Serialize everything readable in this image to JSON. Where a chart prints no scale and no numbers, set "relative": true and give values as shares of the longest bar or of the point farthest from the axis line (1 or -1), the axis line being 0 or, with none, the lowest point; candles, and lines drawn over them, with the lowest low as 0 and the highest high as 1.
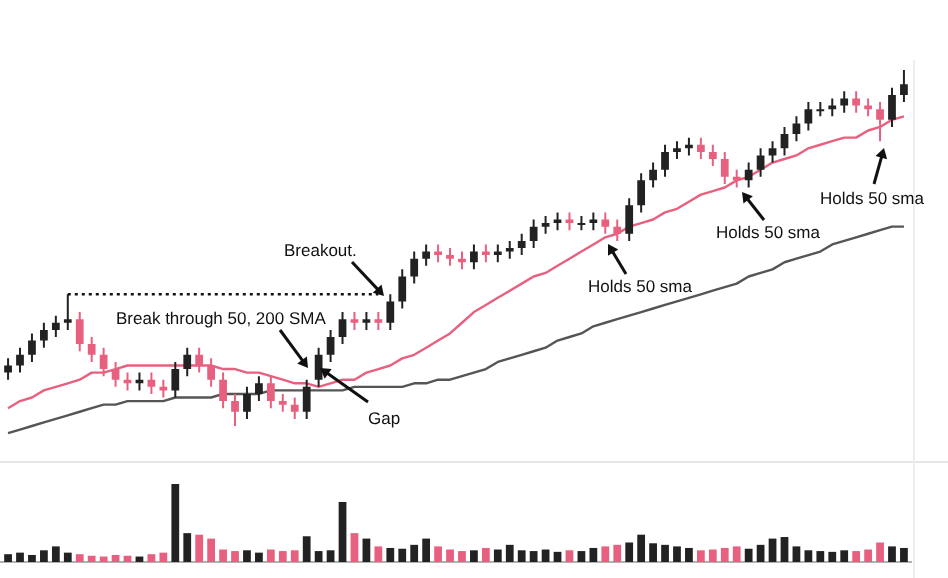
{
  "chart_data": [
    {
      "type": "candlestick",
      "relative": true,
      "categories": [
        null,
        null,
        null,
        null,
        null,
        null,
        null,
        null,
        null,
        null,
        null,
        null,
        null,
        null,
        null,
        null,
        null,
        null,
        null,
        null,
        null,
        null,
        null,
        null,
        null,
        null,
        null,
        null,
        null,
        null,
        null,
        null,
        null,
        null,
        null,
        null,
        null,
        null,
        null,
        null,
        null,
        null,
        null,
        null,
        null,
        null,
        null,
        null,
        null,
        null,
        null,
        null,
        null,
        null,
        null,
        null,
        null,
        null,
        null,
        null,
        null,
        null,
        null,
        null,
        null,
        null,
        null,
        null,
        null,
        null,
        null,
        null,
        null,
        null,
        null,
        null
      ],
      "ohlc": [
        [
          0.15,
          0.19,
          0.13,
          0.17
        ],
        [
          0.17,
          0.22,
          0.15,
          0.2
        ],
        [
          0.2,
          0.26,
          0.18,
          0.24
        ],
        [
          0.24,
          0.29,
          0.22,
          0.27
        ],
        [
          0.27,
          0.31,
          0.25,
          0.29
        ],
        [
          0.29,
          0.37,
          0.27,
          0.3
        ],
        [
          0.3,
          0.32,
          0.21,
          0.23
        ],
        [
          0.23,
          0.25,
          0.18,
          0.2
        ],
        [
          0.2,
          0.22,
          0.14,
          0.16
        ],
        [
          0.16,
          0.18,
          0.11,
          0.13
        ],
        [
          0.13,
          0.15,
          0.1,
          0.12
        ],
        [
          0.12,
          0.15,
          0.1,
          0.13
        ],
        [
          0.13,
          0.15,
          0.09,
          0.11
        ],
        [
          0.11,
          0.13,
          0.08,
          0.1
        ],
        [
          0.1,
          0.18,
          0.08,
          0.16
        ],
        [
          0.16,
          0.22,
          0.14,
          0.2
        ],
        [
          0.2,
          0.22,
          0.15,
          0.17
        ],
        [
          0.17,
          0.19,
          0.11,
          0.13
        ],
        [
          0.13,
          0.15,
          0.05,
          0.07
        ],
        [
          0.07,
          0.09,
          0,
          0.04
        ],
        [
          0.04,
          0.11,
          0.02,
          0.09
        ],
        [
          0.09,
          0.14,
          0.07,
          0.12
        ],
        [
          0.12,
          0.14,
          0.05,
          0.07
        ],
        [
          0.07,
          0.09,
          0.04,
          0.06
        ],
        [
          0.06,
          0.08,
          0.02,
          0.04
        ],
        [
          0.04,
          0.13,
          0.02,
          0.11
        ],
        [
          0.13,
          0.22,
          0.11,
          0.2
        ],
        [
          0.2,
          0.27,
          0.18,
          0.25
        ],
        [
          0.25,
          0.32,
          0.23,
          0.3
        ],
        [
          0.3,
          0.32,
          0.27,
          0.29
        ],
        [
          0.29,
          0.32,
          0.27,
          0.3
        ],
        [
          0.3,
          0.32,
          0.27,
          0.29
        ],
        [
          0.29,
          0.37,
          0.27,
          0.35
        ],
        [
          0.35,
          0.44,
          0.33,
          0.42
        ],
        [
          0.42,
          0.49,
          0.4,
          0.47
        ],
        [
          0.47,
          0.51,
          0.45,
          0.49
        ],
        [
          0.49,
          0.51,
          0.46,
          0.48
        ],
        [
          0.48,
          0.5,
          0.45,
          0.47
        ],
        [
          0.47,
          0.49,
          0.44,
          0.46
        ],
        [
          0.46,
          0.51,
          0.44,
          0.49
        ],
        [
          0.49,
          0.51,
          0.46,
          0.48
        ],
        [
          0.48,
          0.51,
          0.46,
          0.49
        ],
        [
          0.49,
          0.52,
          0.47,
          0.5
        ],
        [
          0.5,
          0.54,
          0.48,
          0.52
        ],
        [
          0.52,
          0.58,
          0.5,
          0.56
        ],
        [
          0.56,
          0.59,
          0.54,
          0.57
        ],
        [
          0.57,
          0.6,
          0.55,
          0.58
        ],
        [
          0.58,
          0.6,
          0.55,
          0.57
        ],
        [
          0.57,
          0.59,
          0.55,
          0.57
        ],
        [
          0.57,
          0.6,
          0.55,
          0.58
        ],
        [
          0.58,
          0.6,
          0.54,
          0.56
        ],
        [
          0.56,
          0.58,
          0.52,
          0.54
        ],
        [
          0.54,
          0.64,
          0.52,
          0.62
        ],
        [
          0.62,
          0.71,
          0.6,
          0.69
        ],
        [
          0.69,
          0.74,
          0.67,
          0.72
        ],
        [
          0.72,
          0.79,
          0.7,
          0.77
        ],
        [
          0.77,
          0.8,
          0.75,
          0.78
        ],
        [
          0.78,
          0.81,
          0.76,
          0.79
        ],
        [
          0.79,
          0.81,
          0.75,
          0.77
        ],
        [
          0.77,
          0.79,
          0.73,
          0.75
        ],
        [
          0.75,
          0.77,
          0.68,
          0.7
        ],
        [
          0.7,
          0.72,
          0.67,
          0.69
        ],
        [
          0.69,
          0.74,
          0.67,
          0.72
        ],
        [
          0.72,
          0.78,
          0.7,
          0.76
        ],
        [
          0.76,
          0.8,
          0.74,
          0.78
        ],
        [
          0.78,
          0.84,
          0.76,
          0.82
        ],
        [
          0.82,
          0.87,
          0.8,
          0.85
        ],
        [
          0.85,
          0.91,
          0.83,
          0.89
        ],
        [
          0.89,
          0.91,
          0.87,
          0.89
        ],
        [
          0.89,
          0.92,
          0.87,
          0.9
        ],
        [
          0.9,
          0.94,
          0.88,
          0.92
        ],
        [
          0.92,
          0.94,
          0.88,
          0.9
        ],
        [
          0.9,
          0.92,
          0.87,
          0.89
        ],
        [
          0.89,
          0.91,
          0.8,
          0.86
        ],
        [
          0.86,
          0.95,
          0.84,
          0.93
        ],
        [
          0.93,
          1,
          0.91,
          0.96
        ]
      ],
      "colors": [
        "#222222",
        "#222222",
        "#222222",
        "#222222",
        "#222222",
        "#222222",
        "#e8607f",
        "#e8607f",
        "#e8607f",
        "#e8607f",
        "#e8607f",
        "#222222",
        "#e8607f",
        "#e8607f",
        "#222222",
        "#222222",
        "#e8607f",
        "#e8607f",
        "#e8607f",
        "#e8607f",
        "#222222",
        "#222222",
        "#e8607f",
        "#e8607f",
        "#e8607f",
        "#222222",
        "#222222",
        "#222222",
        "#222222",
        "#e8607f",
        "#222222",
        "#e8607f",
        "#222222",
        "#222222",
        "#222222",
        "#222222",
        "#e8607f",
        "#e8607f",
        "#e8607f",
        "#222222",
        "#e8607f",
        "#222222",
        "#222222",
        "#222222",
        "#222222",
        "#222222",
        "#222222",
        "#e8607f",
        "#222222",
        "#222222",
        "#e8607f",
        "#e8607f",
        "#222222",
        "#222222",
        "#222222",
        "#222222",
        "#222222",
        "#222222",
        "#e8607f",
        "#e8607f",
        "#e8607f",
        "#e8607f",
        "#222222",
        "#222222",
        "#222222",
        "#222222",
        "#222222",
        "#222222",
        "#222222",
        "#222222",
        "#222222",
        "#e8607f",
        "#e8607f",
        "#e8607f",
        "#222222",
        "#222222"
      ],
      "series": [
        {
          "type": "line",
          "color": "#e8607f",
          "values": [
            0.05,
            0.07,
            0.08,
            0.1,
            0.11,
            0.12,
            0.13,
            0.15,
            0.15,
            0.16,
            0.17,
            0.17,
            0.17,
            0.17,
            0.17,
            0.17,
            0.17,
            0.17,
            0.16,
            0.16,
            0.15,
            0.15,
            0.14,
            0.13,
            0.12,
            0.12,
            0.11,
            0.12,
            0.13,
            0.13,
            0.15,
            0.16,
            0.17,
            0.19,
            0.2,
            0.22,
            0.24,
            0.26,
            0.29,
            0.32,
            0.34,
            0.36,
            0.38,
            0.4,
            0.42,
            0.43,
            0.45,
            0.47,
            0.49,
            0.51,
            0.53,
            0.54,
            0.56,
            0.57,
            0.58,
            0.6,
            0.61,
            0.63,
            0.65,
            0.66,
            0.67,
            0.69,
            0.7,
            0.72,
            0.74,
            0.75,
            0.76,
            0.78,
            0.79,
            0.8,
            0.81,
            0.81,
            0.83,
            0.84,
            0.86,
            0.87
          ]
        },
        {
          "type": "line",
          "color": "#555555",
          "values": [
            -0.02,
            -0.01,
            0,
            0.01,
            0.02,
            0.03,
            0.04,
            0.05,
            0.06,
            0.06,
            0.07,
            0.07,
            0.07,
            0.07,
            0.08,
            0.08,
            0.08,
            0.08,
            0.09,
            0.09,
            0.09,
            0.09,
            0.1,
            0.1,
            0.1,
            0.1,
            0.1,
            0.1,
            0.1,
            0.11,
            0.11,
            0.11,
            0.11,
            0.11,
            0.12,
            0.12,
            0.13,
            0.13,
            0.14,
            0.15,
            0.16,
            0.18,
            0.19,
            0.2,
            0.21,
            0.22,
            0.24,
            0.25,
            0.26,
            0.28,
            0.29,
            0.3,
            0.31,
            0.32,
            0.33,
            0.34,
            0.35,
            0.36,
            0.37,
            0.38,
            0.39,
            0.4,
            0.42,
            0.43,
            0.44,
            0.46,
            0.47,
            0.48,
            0.49,
            0.51,
            0.52,
            0.53,
            0.54,
            0.55,
            0.56,
            0.56
          ]
        }
      ],
      "ref_lines": [
        {
          "axis": "y",
          "value": 0.37,
          "line_style": "dotted",
          "color": "#111111"
        }
      ],
      "annotations": [
        "Breakout.",
        "Break through 50, 200 SMA",
        "Gap",
        "Holds 50 sma",
        "Holds 50 sma",
        "Holds 50 sma"
      ]
    },
    {
      "type": "bar",
      "relative": true,
      "categories": [
        null,
        null,
        null,
        null,
        null,
        null,
        null,
        null,
        null,
        null,
        null,
        null,
        null,
        null,
        null,
        null,
        null,
        null,
        null,
        null,
        null,
        null,
        null,
        null,
        null,
        null,
        null,
        null,
        null,
        null,
        null,
        null,
        null,
        null,
        null,
        null,
        null,
        null,
        null,
        null,
        null,
        null,
        null,
        null,
        null,
        null,
        null,
        null,
        null,
        null,
        null,
        null,
        null,
        null,
        null,
        null,
        null,
        null,
        null,
        null,
        null,
        null,
        null,
        null,
        null,
        null,
        null,
        null,
        null,
        null,
        null,
        null,
        null,
        null,
        null,
        null
      ],
      "values": [
        0.1,
        0.12,
        0.09,
        0.15,
        0.2,
        0.12,
        0.1,
        0.08,
        0.07,
        0.09,
        0.08,
        0.07,
        0.1,
        0.12,
        1,
        0.37,
        0.35,
        0.3,
        0.16,
        0.14,
        0.15,
        0.12,
        0.16,
        0.14,
        0.15,
        0.33,
        0.14,
        0.15,
        0.77,
        0.37,
        0.3,
        0.2,
        0.18,
        0.17,
        0.22,
        0.3,
        0.2,
        0.16,
        0.14,
        0.15,
        0.18,
        0.16,
        0.22,
        0.15,
        0.14,
        0.16,
        0.13,
        0.15,
        0.14,
        0.18,
        0.2,
        0.22,
        0.25,
        0.35,
        0.24,
        0.22,
        0.2,
        0.18,
        0.15,
        0.16,
        0.18,
        0.2,
        0.17,
        0.22,
        0.3,
        0.32,
        0.2,
        0.15,
        0.14,
        0.13,
        0.15,
        0.14,
        0.16,
        0.25,
        0.2,
        0.18
      ],
      "colors": [
        "#222222",
        "#222222",
        "#222222",
        "#222222",
        "#222222",
        "#222222",
        "#e8607f",
        "#e8607f",
        "#e8607f",
        "#e8607f",
        "#e8607f",
        "#222222",
        "#e8607f",
        "#e8607f",
        "#222222",
        "#222222",
        "#e8607f",
        "#e8607f",
        "#e8607f",
        "#e8607f",
        "#222222",
        "#222222",
        "#e8607f",
        "#e8607f",
        "#e8607f",
        "#222222",
        "#222222",
        "#222222",
        "#222222",
        "#e8607f",
        "#222222",
        "#e8607f",
        "#222222",
        "#222222",
        "#222222",
        "#222222",
        "#e8607f",
        "#e8607f",
        "#e8607f",
        "#222222",
        "#e8607f",
        "#222222",
        "#222222",
        "#222222",
        "#222222",
        "#222222",
        "#222222",
        "#e8607f",
        "#222222",
        "#222222",
        "#e8607f",
        "#e8607f",
        "#222222",
        "#222222",
        "#222222",
        "#222222",
        "#222222",
        "#222222",
        "#e8607f",
        "#e8607f",
        "#e8607f",
        "#e8607f",
        "#222222",
        "#222222",
        "#222222",
        "#222222",
        "#222222",
        "#222222",
        "#222222",
        "#222222",
        "#222222",
        "#e8607f",
        "#e8607f",
        "#e8607f",
        "#222222",
        "#222222"
      ]
    }
  ]
}
